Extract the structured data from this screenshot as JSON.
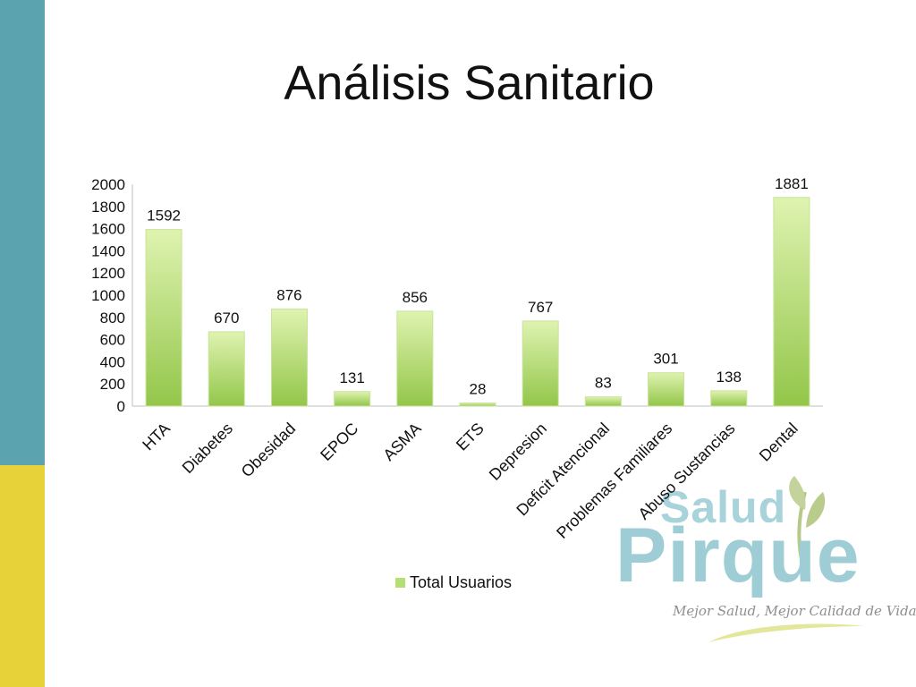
{
  "slide": {
    "title": "Análisis Sanitario"
  },
  "colors": {
    "teal_band": "#5ba3af",
    "yellow_band": "#e8d23a",
    "bar_light": "#d9f0a8",
    "bar_dark": "#92c548"
  },
  "chart_data": {
    "type": "bar",
    "title": "",
    "categories": [
      "HTA",
      "Diabetes",
      "Obesidad",
      "EPOC",
      "ASMA",
      "ETS",
      "Depresion",
      "Deficit Atencional",
      "Problemas Familiares",
      "Abuso Sustancias",
      "Dental"
    ],
    "series": [
      {
        "name": "Total Usuarios",
        "values": [
          1592,
          670,
          876,
          131,
          856,
          28,
          767,
          83,
          301,
          138,
          1881
        ]
      }
    ],
    "ylim": [
      0,
      2000
    ],
    "yticks": [
      0,
      200,
      400,
      600,
      800,
      1000,
      1200,
      1400,
      1600,
      1800,
      2000
    ],
    "grid": false,
    "legend": "bottom",
    "data_labels": true
  },
  "logo": {
    "line1": "Salud",
    "line2": "Pirque",
    "tagline": "Mejor Salud, Mejor Calidad de Vida."
  }
}
